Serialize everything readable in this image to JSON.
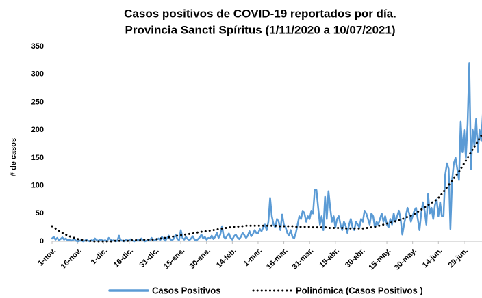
{
  "chart_data": {
    "type": "line",
    "title": [
      "Casos positivos de COVID-19 reportados por día.",
      "Provincia Sancti Spíritus (1/11/2020 a 10/07/2021)"
    ],
    "y_label": "# de casos",
    "ylim": [
      0,
      350
    ],
    "yticks": [
      0,
      50,
      100,
      150,
      200,
      250,
      300,
      350
    ],
    "grid": false,
    "legend": "bottom",
    "categories": [
      "1-nov.",
      null,
      null,
      null,
      null,
      null,
      null,
      null,
      null,
      null,
      null,
      null,
      null,
      null,
      null,
      "16-nov.",
      null,
      null,
      null,
      null,
      null,
      null,
      null,
      null,
      null,
      null,
      null,
      null,
      null,
      null,
      "1-dic.",
      null,
      null,
      null,
      null,
      null,
      null,
      null,
      null,
      null,
      null,
      null,
      null,
      null,
      null,
      "16-dic.",
      null,
      null,
      null,
      null,
      null,
      null,
      null,
      null,
      null,
      null,
      null,
      null,
      null,
      null,
      "31-dic.",
      null,
      null,
      null,
      null,
      null,
      null,
      null,
      null,
      null,
      null,
      null,
      null,
      null,
      null,
      "15-ene.",
      null,
      null,
      null,
      null,
      null,
      null,
      null,
      null,
      null,
      null,
      null,
      null,
      null,
      null,
      "30-ene.",
      null,
      null,
      null,
      null,
      null,
      null,
      null,
      null,
      null,
      null,
      null,
      null,
      null,
      null,
      "14-feb.",
      null,
      null,
      null,
      null,
      null,
      null,
      null,
      null,
      null,
      null,
      null,
      null,
      null,
      null,
      "1-mar.",
      null,
      null,
      null,
      null,
      null,
      null,
      null,
      null,
      null,
      null,
      null,
      null,
      null,
      null,
      "16-mar.",
      null,
      null,
      null,
      null,
      null,
      null,
      null,
      null,
      null,
      null,
      null,
      null,
      null,
      null,
      "31-mar.",
      null,
      null,
      null,
      null,
      null,
      null,
      null,
      null,
      null,
      null,
      null,
      null,
      null,
      null,
      "15-abr.",
      null,
      null,
      null,
      null,
      null,
      null,
      null,
      null,
      null,
      null,
      null,
      null,
      null,
      null,
      "30-abr.",
      null,
      null,
      null,
      null,
      null,
      null,
      null,
      null,
      null,
      null,
      null,
      null,
      null,
      null,
      "15-may.",
      null,
      null,
      null,
      null,
      null,
      null,
      null,
      null,
      null,
      null,
      null,
      null,
      null,
      null,
      "30-may.",
      null,
      null,
      null,
      null,
      null,
      null,
      null,
      null,
      null,
      null,
      null,
      null,
      null,
      null,
      "14-jun.",
      null,
      null,
      null,
      null,
      null,
      null,
      null,
      null,
      null,
      null,
      null,
      null,
      null,
      null,
      "29-jun.",
      null,
      null,
      null,
      null,
      null,
      null,
      null,
      null,
      null,
      null,
      null
    ],
    "series": [
      {
        "name": "Casos Positivos",
        "color": "#5b9bd5",
        "line_style": "solid",
        "values": [
          5,
          8,
          3,
          6,
          2,
          4,
          7,
          3,
          5,
          2,
          3,
          1,
          2,
          4,
          1,
          0,
          1,
          2,
          0,
          1,
          3,
          1,
          0,
          2,
          1,
          5,
          2,
          1,
          3,
          2,
          1,
          2,
          0,
          6,
          3,
          1,
          2,
          0,
          1,
          10,
          2,
          1,
          0,
          3,
          1,
          2,
          4,
          1,
          0,
          2,
          3,
          1,
          5,
          2,
          0,
          1,
          3,
          2,
          6,
          1,
          2,
          3,
          5,
          2,
          8,
          4,
          1,
          6,
          10,
          3,
          2,
          5,
          12,
          4,
          2,
          20,
          6,
          3,
          8,
          4,
          2,
          5,
          9,
          3,
          1,
          4,
          7,
          12,
          5,
          8,
          3,
          6,
          5,
          10,
          4,
          8,
          15,
          6,
          12,
          27,
          8,
          5,
          10,
          14,
          6,
          3,
          9,
          12,
          7,
          4,
          8,
          15,
          11,
          6,
          10,
          18,
          9,
          13,
          20,
          15,
          14,
          22,
          18,
          25,
          30,
          20,
          35,
          78,
          45,
          30,
          25,
          40,
          35,
          20,
          48,
          30,
          25,
          15,
          10,
          20,
          8,
          5,
          15,
          30,
          45,
          40,
          55,
          50,
          35,
          45,
          40,
          55,
          50,
          93,
          92,
          60,
          30,
          45,
          20,
          80,
          40,
          90,
          60,
          35,
          45,
          25,
          40,
          45,
          30,
          20,
          35,
          28,
          15,
          30,
          40,
          25,
          20,
          35,
          30,
          25,
          40,
          35,
          55,
          50,
          40,
          30,
          50,
          45,
          25,
          35,
          30,
          40,
          50,
          35,
          45,
          30,
          25,
          40,
          30,
          50,
          35,
          45,
          55,
          40,
          12,
          30,
          45,
          60,
          50,
          35,
          45,
          55,
          60,
          40,
          20,
          50,
          70,
          55,
          30,
          85,
          50,
          60,
          40,
          65,
          75,
          45,
          70,
          45,
          45,
          120,
          140,
          130,
          22,
          110,
          140,
          150,
          130,
          110,
          215,
          160,
          200,
          150,
          210,
          320,
          130,
          200,
          170,
          220,
          160,
          200,
          180,
          235
        ]
      },
      {
        "name": "Polinómica (Casos Positivos )",
        "color": "#000000",
        "line_style": "dotted",
        "values": [
          27,
          25,
          23,
          21,
          19,
          17,
          15,
          13,
          12,
          10,
          9,
          8,
          7,
          6,
          5,
          4,
          3,
          3,
          2,
          2,
          1,
          1,
          1,
          0,
          0,
          0,
          0,
          0,
          0,
          0,
          0,
          0,
          0,
          0,
          0,
          0,
          1,
          1,
          1,
          1,
          1,
          1,
          1,
          1,
          1,
          1,
          2,
          2,
          2,
          2,
          2,
          2,
          2,
          2,
          3,
          3,
          3,
          3,
          3,
          3,
          3,
          4,
          4,
          5,
          5,
          6,
          6,
          7,
          7,
          8,
          8,
          9,
          9,
          10,
          10,
          11,
          11,
          12,
          12,
          13,
          13,
          14,
          14,
          15,
          15,
          16,
          16,
          17,
          17,
          18,
          18,
          19,
          19,
          20,
          20,
          21,
          21,
          22,
          22,
          23,
          23,
          24,
          24,
          25,
          25,
          25,
          26,
          26,
          26,
          27,
          27,
          27,
          27,
          28,
          28,
          28,
          28,
          28,
          28,
          28,
          28,
          28,
          28,
          28,
          28,
          28,
          28,
          28,
          28,
          28,
          28,
          27,
          27,
          27,
          27,
          27,
          27,
          27,
          27,
          27,
          27,
          26,
          26,
          26,
          26,
          26,
          26,
          26,
          26,
          26,
          26,
          25,
          25,
          25,
          25,
          25,
          25,
          25,
          25,
          25,
          25,
          24,
          24,
          24,
          24,
          24,
          24,
          24,
          24,
          24,
          24,
          23,
          23,
          23,
          23,
          23,
          23,
          23,
          23,
          23,
          23,
          23,
          23,
          24,
          24,
          25,
          25,
          26,
          26,
          27,
          28,
          28,
          29,
          30,
          31,
          32,
          32,
          33,
          34,
          35,
          36,
          37,
          38,
          39,
          40,
          41,
          42,
          44,
          45,
          46,
          48,
          49,
          51,
          53,
          55,
          57,
          59,
          61,
          63,
          65,
          67,
          69,
          71,
          73,
          75,
          78,
          81,
          85,
          89,
          93,
          97,
          101,
          105,
          109,
          113,
          117,
          121,
          125,
          130,
          135,
          140,
          145,
          150,
          155,
          160,
          165,
          170,
          175,
          180,
          185,
          190,
          195
        ]
      }
    ]
  }
}
